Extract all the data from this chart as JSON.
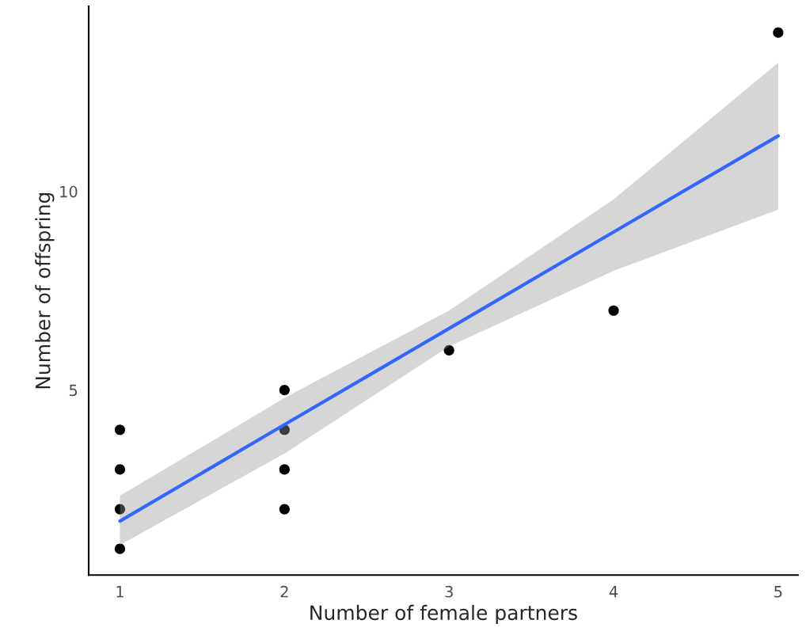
{
  "chart_data": {
    "type": "scatter",
    "xlabel": "Number of female partners",
    "ylabel": "Number of offspring",
    "series": [
      {
        "marker": "circle",
        "color": "#000000",
        "x": [
          1,
          1,
          1,
          1,
          2,
          2,
          2,
          2,
          3,
          4,
          5
        ],
        "values": [
          1,
          2,
          3,
          4,
          2,
          3,
          4,
          5,
          6,
          7,
          14
        ]
      },
      {
        "type": "line",
        "color": "#3366ff",
        "x": [
          1,
          2,
          3,
          4,
          5
        ],
        "values": [
          1.7,
          4.13,
          6.55,
          8.98,
          11.4
        ],
        "lower": [
          1.1,
          3.4,
          6.1,
          8.0,
          9.54
        ],
        "upper": [
          2.34,
          4.8,
          7.0,
          9.8,
          13.24
        ]
      }
    ],
    "xlim": [
      0.81,
      5.12
    ],
    "ylim": [
      0.34,
      14.66
    ],
    "xticks": [
      1,
      2,
      3,
      4,
      5
    ],
    "yticks": [
      5,
      10
    ],
    "grid": false,
    "legend": false
  }
}
